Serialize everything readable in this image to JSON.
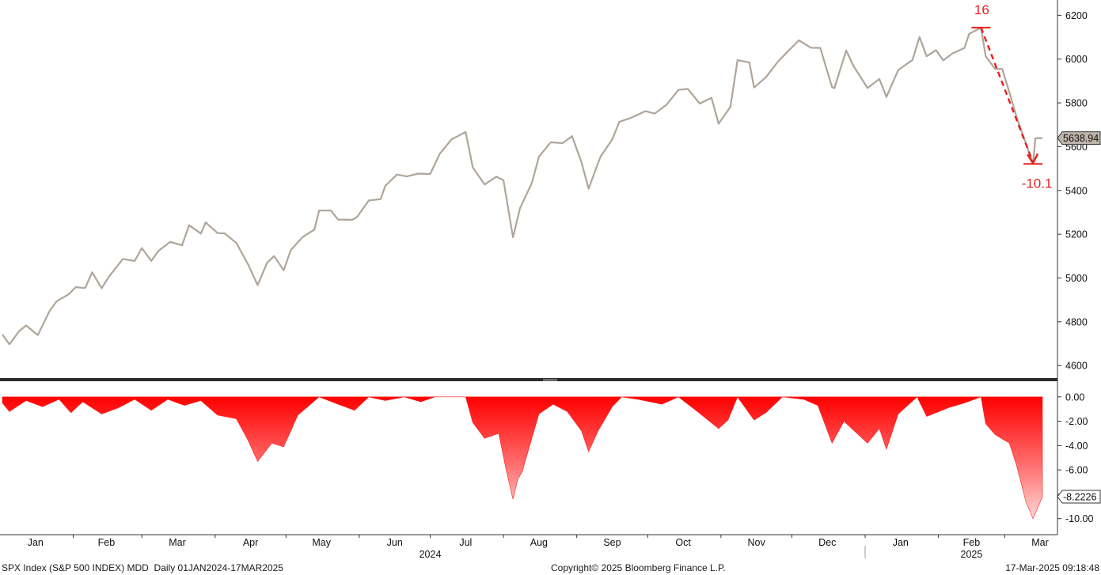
{
  "header": {
    "ticker": "SPX Index (S&P 500 INDEX) MDD",
    "period": "Daily 01JAN2024-17MAR2025"
  },
  "footer": {
    "copyright": "Copyright© 2025 Bloomberg Finance L.P.",
    "timestamp": "17-Mar-2025 09:18:48"
  },
  "colors": {
    "price_line": "#b0a59a",
    "drawdown_fill_top": "#ff0000",
    "drawdown_fill_bottom": "#ffd2d2",
    "annotation": "#e8201c",
    "axis": "#333333"
  },
  "chart_data": [
    {
      "type": "line",
      "name": "price-panel",
      "ylim": [
        4550,
        6270
      ],
      "yticks": [
        4600,
        4800,
        5000,
        5200,
        5400,
        5600,
        5800,
        6000,
        6200
      ],
      "last_value_label": "5638.94",
      "annotations": [
        {
          "label": "16",
          "date": "2025-02-19",
          "value": 6144
        },
        {
          "label": "-10.1",
          "date": "2025-03-13",
          "value": 5521
        }
      ],
      "x": [
        "2024-01-02",
        "2024-01-05",
        "2024-01-09",
        "2024-01-12",
        "2024-01-17",
        "2024-01-22",
        "2024-01-25",
        "2024-01-30",
        "2024-02-02",
        "2024-02-06",
        "2024-02-09",
        "2024-02-13",
        "2024-02-16",
        "2024-02-22",
        "2024-02-27",
        "2024-03-01",
        "2024-03-05",
        "2024-03-08",
        "2024-03-13",
        "2024-03-18",
        "2024-03-21",
        "2024-03-26",
        "2024-03-28",
        "2024-04-02",
        "2024-04-05",
        "2024-04-10",
        "2024-04-15",
        "2024-04-19",
        "2024-04-23",
        "2024-04-26",
        "2024-04-30",
        "2024-05-03",
        "2024-05-08",
        "2024-05-13",
        "2024-05-15",
        "2024-05-20",
        "2024-05-23",
        "2024-05-29",
        "2024-05-31",
        "2024-06-05",
        "2024-06-10",
        "2024-06-12",
        "2024-06-17",
        "2024-06-21",
        "2024-06-26",
        "2024-07-01",
        "2024-07-05",
        "2024-07-10",
        "2024-07-16",
        "2024-07-19",
        "2024-07-24",
        "2024-07-29",
        "2024-08-01",
        "2024-08-05",
        "2024-08-08",
        "2024-08-13",
        "2024-08-16",
        "2024-08-21",
        "2024-08-26",
        "2024-08-30",
        "2024-09-03",
        "2024-09-06",
        "2024-09-11",
        "2024-09-16",
        "2024-09-19",
        "2024-09-24",
        "2024-09-30",
        "2024-10-04",
        "2024-10-09",
        "2024-10-14",
        "2024-10-18",
        "2024-10-23",
        "2024-10-28",
        "2024-10-31",
        "2024-11-05",
        "2024-11-08",
        "2024-11-13",
        "2024-11-15",
        "2024-11-20",
        "2024-11-25",
        "2024-11-29",
        "2024-12-04",
        "2024-12-09",
        "2024-12-13",
        "2024-12-18",
        "2024-12-19",
        "2024-12-24",
        "2024-12-27",
        "2025-01-02",
        "2025-01-07",
        "2025-01-10",
        "2025-01-15",
        "2025-01-21",
        "2025-01-24",
        "2025-01-27",
        "2025-01-31",
        "2025-02-03",
        "2025-02-07",
        "2025-02-12",
        "2025-02-14",
        "2025-02-19",
        "2025-02-21",
        "2025-02-25",
        "2025-02-28",
        "2025-03-03",
        "2025-03-06",
        "2025-03-10",
        "2025-03-13",
        "2025-03-14",
        "2025-03-17"
      ],
      "values": [
        4742,
        4697,
        4756,
        4783,
        4739,
        4850,
        4894,
        4925,
        4958,
        4954,
        5026,
        4953,
        5005,
        5087,
        5078,
        5137,
        5078,
        5123,
        5165,
        5149,
        5241,
        5203,
        5254,
        5205,
        5204,
        5160,
        5061,
        4967,
        5070,
        5100,
        5035,
        5127,
        5187,
        5221,
        5308,
        5308,
        5267,
        5266,
        5278,
        5354,
        5360,
        5421,
        5473,
        5464,
        5477,
        5475,
        5567,
        5633,
        5667,
        5505,
        5427,
        5463,
        5446,
        5186,
        5319,
        5434,
        5554,
        5620,
        5616,
        5648,
        5528,
        5408,
        5554,
        5633,
        5713,
        5732,
        5762,
        5751,
        5792,
        5859,
        5864,
        5797,
        5823,
        5705,
        5782,
        5995,
        5985,
        5870,
        5917,
        5987,
        6032,
        6086,
        6052,
        6051,
        5872,
        5867,
        6040,
        5970,
        5868,
        5909,
        5827,
        5950,
        5996,
        6101,
        6013,
        6041,
        5994,
        6026,
        6051,
        6115,
        6144,
        6013,
        5955,
        5955,
        5849,
        5738,
        5615,
        5521,
        5638,
        5639
      ]
    },
    {
      "type": "area",
      "name": "drawdown-panel",
      "ylim": [
        -10.8,
        0.9
      ],
      "yticks": [
        0.0,
        -2.0,
        -4.0,
        -6.0,
        -8.0,
        -10.0
      ],
      "last_value_label": "-8.2226",
      "x": [
        "2024-01-02",
        "2024-01-05",
        "2024-01-12",
        "2024-01-19",
        "2024-01-26",
        "2024-01-31",
        "2024-02-05",
        "2024-02-13",
        "2024-02-20",
        "2024-02-27",
        "2024-03-05",
        "2024-03-12",
        "2024-03-19",
        "2024-03-26",
        "2024-04-02",
        "2024-04-10",
        "2024-04-15",
        "2024-04-19",
        "2024-04-25",
        "2024-04-30",
        "2024-05-06",
        "2024-05-15",
        "2024-05-23",
        "2024-05-30",
        "2024-06-05",
        "2024-06-12",
        "2024-06-20",
        "2024-06-27",
        "2024-07-03",
        "2024-07-10",
        "2024-07-16",
        "2024-07-19",
        "2024-07-24",
        "2024-07-30",
        "2024-08-02",
        "2024-08-05",
        "2024-08-07",
        "2024-08-09",
        "2024-08-13",
        "2024-08-16",
        "2024-08-22",
        "2024-08-28",
        "2024-09-03",
        "2024-09-06",
        "2024-09-10",
        "2024-09-16",
        "2024-09-20",
        "2024-09-27",
        "2024-10-07",
        "2024-10-14",
        "2024-10-22",
        "2024-10-31",
        "2024-11-04",
        "2024-11-08",
        "2024-11-15",
        "2024-11-20",
        "2024-11-27",
        "2024-12-06",
        "2024-12-12",
        "2024-12-18",
        "2024-12-23",
        "2025-01-02",
        "2025-01-07",
        "2025-01-10",
        "2025-01-15",
        "2025-01-23",
        "2025-01-27",
        "2025-01-31",
        "2025-02-05",
        "2025-02-12",
        "2025-02-19",
        "2025-02-21",
        "2025-02-25",
        "2025-03-03",
        "2025-03-06",
        "2025-03-10",
        "2025-03-13",
        "2025-03-17"
      ],
      "values": [
        -0.5,
        -1.2,
        -0.3,
        -0.8,
        -0.2,
        -1.3,
        -0.4,
        -1.4,
        -0.9,
        -0.2,
        -1.1,
        -0.2,
        -0.7,
        -0.3,
        -1.5,
        -1.8,
        -3.6,
        -5.3,
        -3.8,
        -4.1,
        -1.5,
        0,
        -0.6,
        -1.1,
        0,
        -0.3,
        0,
        -0.4,
        0,
        0,
        0,
        -2.1,
        -3.4,
        -3.0,
        -5.9,
        -8.4,
        -6.8,
        -6.1,
        -3.4,
        -1.4,
        -0.6,
        -1.2,
        -2.8,
        -4.5,
        -2.8,
        -0.8,
        0,
        -0.2,
        -0.6,
        0,
        -1.2,
        -2.6,
        -1.9,
        0,
        -1.9,
        -1.3,
        0,
        -0.2,
        -0.7,
        -3.8,
        -2.0,
        -3.8,
        -2.6,
        -4.3,
        -1.4,
        0,
        -1.6,
        -1.3,
        -0.9,
        -0.5,
        0,
        -2.2,
        -3.1,
        -3.8,
        -5.6,
        -8.6,
        -10.0,
        -8.2
      ]
    }
  ],
  "xaxis": {
    "months": [
      {
        "label": "Jan",
        "date": "2024-01-16"
      },
      {
        "label": "Feb",
        "date": "2024-02-15"
      },
      {
        "label": "Mar",
        "date": "2024-03-16"
      },
      {
        "label": "Apr",
        "date": "2024-04-16"
      },
      {
        "label": "May",
        "date": "2024-05-16"
      },
      {
        "label": "Jun",
        "date": "2024-06-16"
      },
      {
        "label": "Jul",
        "date": "2024-07-16"
      },
      {
        "label": "Aug",
        "date": "2024-08-16"
      },
      {
        "label": "Sep",
        "date": "2024-09-16"
      },
      {
        "label": "Oct",
        "date": "2024-10-16"
      },
      {
        "label": "Nov",
        "date": "2024-11-16"
      },
      {
        "label": "Dec",
        "date": "2024-12-16"
      },
      {
        "label": "Jan",
        "date": "2025-01-16"
      },
      {
        "label": "Feb",
        "date": "2025-02-15"
      },
      {
        "label": "Mar",
        "date": "2025-03-16"
      }
    ],
    "years": [
      {
        "label": "2024",
        "date": "2024-07-01"
      },
      {
        "label": "2025",
        "date": "2025-02-15"
      }
    ]
  }
}
